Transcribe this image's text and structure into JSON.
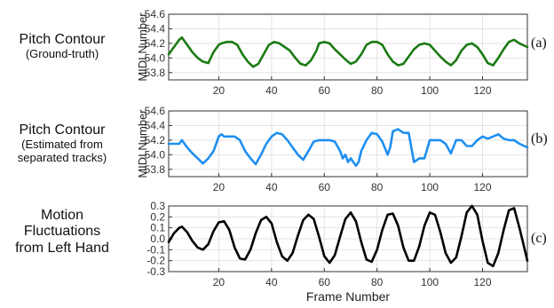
{
  "row_labels": [
    {
      "main": "Pitch Contour",
      "sub": "(Ground-truth)"
    },
    {
      "main": "Pitch Contour",
      "sub": "(Estimated from",
      "sub2": "separated tracks)"
    },
    {
      "main": "Motion",
      "sub": "Fluctuations",
      "sub2": "from Left Hand"
    }
  ],
  "tags": [
    "(a)",
    "(b)",
    "(c)"
  ],
  "chart_data": [
    {
      "type": "line",
      "ylabel": "MIDI Number",
      "xlabel": "",
      "xlim": [
        1,
        137
      ],
      "ylim": [
        53.7,
        54.6
      ],
      "yticks": [
        53.8,
        54.0,
        54.2,
        54.4,
        54.6
      ],
      "ytick_labels": [
        "53.8",
        "54.0",
        "54.2",
        "54.4",
        "54.6"
      ],
      "xticks": [
        20,
        40,
        60,
        80,
        100,
        120
      ],
      "xtick_labels": [
        "20",
        "40",
        "60",
        "80",
        "100",
        "120"
      ],
      "grid": true,
      "color": "#1a7a12",
      "series": [
        {
          "x": [
            1,
            3,
            5,
            6,
            8,
            10,
            12,
            14,
            16,
            18,
            20,
            21,
            23,
            25,
            27,
            29,
            31,
            33,
            35,
            37,
            39,
            41,
            43,
            45,
            47,
            49,
            51,
            53,
            55,
            57,
            58,
            60,
            62,
            64,
            66,
            68,
            70,
            72,
            74,
            76,
            78,
            80,
            82,
            84,
            86,
            88,
            90,
            92,
            94,
            96,
            98,
            100,
            102,
            104,
            106,
            108,
            110,
            112,
            114,
            116,
            118,
            120,
            122,
            124,
            126,
            128,
            130,
            132,
            134,
            137
          ],
          "y": [
            54.05,
            54.15,
            54.25,
            54.28,
            54.18,
            54.08,
            54.0,
            53.95,
            53.93,
            54.08,
            54.18,
            54.2,
            54.22,
            54.22,
            54.18,
            54.05,
            53.95,
            53.88,
            53.92,
            54.05,
            54.18,
            54.22,
            54.2,
            54.15,
            54.1,
            54.0,
            53.92,
            53.9,
            53.97,
            54.1,
            54.2,
            54.22,
            54.2,
            54.12,
            54.05,
            53.98,
            53.92,
            53.95,
            54.05,
            54.18,
            54.22,
            54.22,
            54.18,
            54.05,
            53.95,
            53.9,
            53.92,
            54.02,
            54.12,
            54.18,
            54.2,
            54.18,
            54.1,
            54.02,
            53.95,
            53.9,
            53.97,
            54.1,
            54.18,
            54.2,
            54.15,
            54.05,
            53.93,
            53.9,
            54.0,
            54.12,
            54.22,
            54.25,
            54.2,
            54.15
          ]
        }
      ]
    },
    {
      "type": "line",
      "ylabel": "MIDI Number",
      "xlabel": "",
      "xlim": [
        1,
        137
      ],
      "ylim": [
        53.7,
        54.6
      ],
      "yticks": [
        53.8,
        54.0,
        54.2,
        54.4,
        54.6
      ],
      "ytick_labels": [
        "53.8",
        "54.0",
        "54.2",
        "54.4",
        "54.6"
      ],
      "xticks": [
        20,
        40,
        60,
        80,
        100,
        120
      ],
      "xtick_labels": [
        "20",
        "40",
        "60",
        "80",
        "100",
        "120"
      ],
      "grid": true,
      "color": "#1f8ff0",
      "series": [
        {
          "x": [
            1,
            3,
            5,
            6,
            8,
            10,
            12,
            14,
            16,
            18,
            19,
            20,
            21,
            22,
            24,
            26,
            28,
            30,
            32,
            34,
            36,
            38,
            40,
            42,
            44,
            46,
            48,
            50,
            52,
            54,
            56,
            58,
            60,
            62,
            64,
            66,
            67,
            68,
            69,
            70,
            71,
            72,
            73,
            74,
            76,
            78,
            80,
            82,
            84,
            85,
            86,
            88,
            90,
            92,
            94,
            96,
            98,
            100,
            102,
            104,
            106,
            108,
            110,
            112,
            114,
            116,
            118,
            120,
            122,
            124,
            126,
            128,
            130,
            132,
            134,
            137
          ],
          "y": [
            54.15,
            54.15,
            54.15,
            54.2,
            54.1,
            54.02,
            53.95,
            53.88,
            53.95,
            54.05,
            54.15,
            54.25,
            54.28,
            54.25,
            54.25,
            54.25,
            54.2,
            54.05,
            53.95,
            53.87,
            54.0,
            54.15,
            54.25,
            54.3,
            54.28,
            54.2,
            54.1,
            54.0,
            53.93,
            54.05,
            54.18,
            54.2,
            54.2,
            54.2,
            54.18,
            54.05,
            53.95,
            54.0,
            53.9,
            53.95,
            53.9,
            53.85,
            53.9,
            54.05,
            54.2,
            54.3,
            54.28,
            54.18,
            54.0,
            54.1,
            54.32,
            54.35,
            54.3,
            54.3,
            53.9,
            53.95,
            53.95,
            54.2,
            54.2,
            54.2,
            54.15,
            54.02,
            54.2,
            54.2,
            54.12,
            54.12,
            54.2,
            54.25,
            54.22,
            54.25,
            54.28,
            54.22,
            54.2,
            54.2,
            54.15,
            54.1
          ]
        }
      ]
    },
    {
      "type": "line",
      "ylabel": "",
      "xlabel": "Frame Number",
      "xlim": [
        1,
        137
      ],
      "ylim": [
        -0.3,
        0.3
      ],
      "yticks": [
        -0.3,
        -0.2,
        -0.1,
        0.0,
        0.1,
        0.2,
        0.3
      ],
      "ytick_labels": [
        "-0.3",
        "-0.2",
        "-0.1",
        "0.0",
        "0.1",
        "0.2",
        "0.3"
      ],
      "xticks": [
        20,
        40,
        60,
        80,
        100,
        120
      ],
      "xtick_labels": [
        "20",
        "40",
        "60",
        "80",
        "100",
        "120"
      ],
      "grid": true,
      "color": "#000000",
      "series": [
        {
          "x": [
            1,
            3,
            5,
            6,
            8,
            10,
            12,
            14,
            16,
            18,
            20,
            22,
            24,
            26,
            28,
            30,
            32,
            34,
            36,
            38,
            40,
            42,
            44,
            46,
            48,
            50,
            52,
            54,
            56,
            58,
            60,
            62,
            64,
            66,
            68,
            70,
            72,
            74,
            76,
            78,
            80,
            82,
            84,
            86,
            88,
            90,
            92,
            94,
            96,
            98,
            100,
            102,
            104,
            106,
            108,
            110,
            112,
            114,
            116,
            118,
            120,
            122,
            124,
            126,
            128,
            130,
            132,
            134,
            137
          ],
          "y": [
            -0.03,
            0.05,
            0.1,
            0.11,
            0.06,
            -0.02,
            -0.08,
            -0.1,
            -0.05,
            0.07,
            0.15,
            0.16,
            0.08,
            -0.08,
            -0.18,
            -0.19,
            -0.1,
            0.05,
            0.17,
            0.2,
            0.14,
            -0.03,
            -0.16,
            -0.2,
            -0.13,
            0.03,
            0.17,
            0.22,
            0.18,
            0.02,
            -0.16,
            -0.22,
            -0.15,
            0.02,
            0.18,
            0.24,
            0.16,
            -0.03,
            -0.19,
            -0.21,
            -0.1,
            0.08,
            0.22,
            0.23,
            0.12,
            -0.08,
            -0.2,
            -0.2,
            -0.07,
            0.12,
            0.24,
            0.22,
            0.06,
            -0.13,
            -0.22,
            -0.17,
            0.02,
            0.24,
            0.3,
            0.22,
            -0.02,
            -0.22,
            -0.25,
            -0.13,
            0.08,
            0.26,
            0.28,
            0.1,
            -0.2
          ]
        }
      ]
    }
  ]
}
